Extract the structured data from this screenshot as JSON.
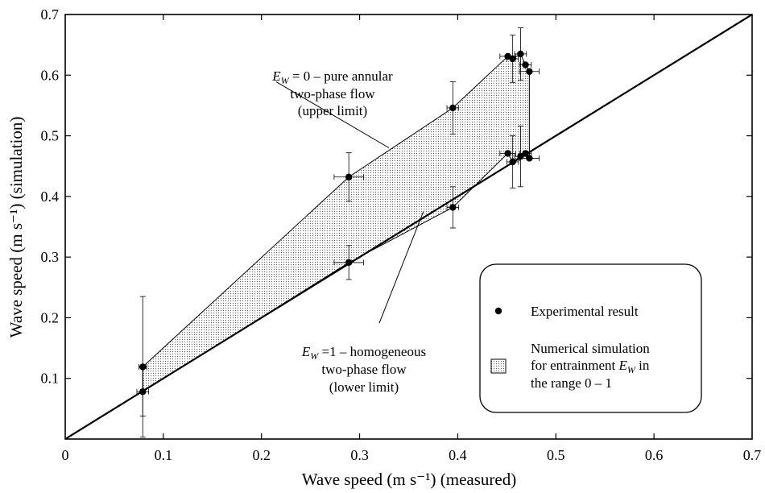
{
  "chart_data": {
    "type": "scatter",
    "xlabel": "Wave speed (m s⁻¹) (measured)",
    "ylabel": "Wave speed (m s⁻¹) (simulation)",
    "xlim": [
      0,
      0.7
    ],
    "ylim": [
      0,
      0.7
    ],
    "x_ticks": [
      "0",
      "0.1",
      "0.2",
      "0.3",
      "0.4",
      "0.5",
      "0.6",
      "0.7"
    ],
    "y_ticks": [
      "0.1",
      "0.2",
      "0.3",
      "0.4",
      "0.5",
      "0.6",
      "0.7"
    ],
    "x_tick_values": [
      0,
      0.1,
      0.2,
      0.3,
      0.4,
      0.5,
      0.6,
      0.7
    ],
    "y_tick_values": [
      0.1,
      0.2,
      0.3,
      0.4,
      0.5,
      0.6,
      0.7
    ],
    "grid": false,
    "reference_line": {
      "x": [
        0,
        0.7
      ],
      "y": [
        0,
        0.7
      ]
    },
    "upper_limit": {
      "x": [
        0.079,
        0.289,
        0.395,
        0.451,
        0.456,
        0.464,
        0.469,
        0.473
      ],
      "y": [
        0.119,
        0.432,
        0.546,
        0.631,
        0.627,
        0.635,
        0.617,
        0.606
      ]
    },
    "lower_limit": {
      "x": [
        0.079,
        0.289,
        0.395,
        0.451,
        0.456,
        0.464,
        0.469,
        0.473
      ],
      "y": [
        0.078,
        0.291,
        0.382,
        0.471,
        0.457,
        0.466,
        0.471,
        0.463
      ]
    },
    "series": [
      {
        "name": "Experimental result",
        "points": [
          {
            "x": 0.079,
            "y": 0.119,
            "xerr": 0.004,
            "yerr": 0.116
          },
          {
            "x": 0.079,
            "y": 0.078,
            "xerr": 0.006,
            "yerr": 0.04
          },
          {
            "x": 0.289,
            "y": 0.432,
            "xerr": 0.015,
            "yerr": 0.04
          },
          {
            "x": 0.289,
            "y": 0.291,
            "xerr": 0.015,
            "yerr": 0.028
          },
          {
            "x": 0.395,
            "y": 0.546,
            "xerr": 0.006,
            "yerr": 0.043
          },
          {
            "x": 0.395,
            "y": 0.382,
            "xerr": 0.006,
            "yerr": 0.034
          },
          {
            "x": 0.451,
            "y": 0.631,
            "xerr": 0.008,
            "yerr": 0.0
          },
          {
            "x": 0.456,
            "y": 0.627,
            "xerr": 0.006,
            "yerr": 0.039
          },
          {
            "x": 0.464,
            "y": 0.635,
            "xerr": 0.006,
            "yerr": 0.043
          },
          {
            "x": 0.469,
            "y": 0.617,
            "xerr": 0.006,
            "yerr": 0.0
          },
          {
            "x": 0.473,
            "y": 0.606,
            "xerr": 0.01,
            "yerr": 0.0
          },
          {
            "x": 0.451,
            "y": 0.471,
            "xerr": 0.008,
            "yerr": 0.0
          },
          {
            "x": 0.456,
            "y": 0.457,
            "xerr": 0.006,
            "yerr": 0.043
          },
          {
            "x": 0.464,
            "y": 0.466,
            "xerr": 0.006,
            "yerr": 0.05
          },
          {
            "x": 0.469,
            "y": 0.471,
            "xerr": 0.006,
            "yerr": 0.0
          },
          {
            "x": 0.473,
            "y": 0.463,
            "xerr": 0.01,
            "yerr": 0.0
          }
        ]
      }
    ],
    "annotations": {
      "upper": {
        "line1_sub": "W",
        "line1_rest": " = 0 – pure annular",
        "line2": "two-phase flow",
        "line3": "(upper limit)",
        "pointer_from": {
          "x": 0.215,
          "y": 0.589
        },
        "pointer_to": {
          "x": 0.33,
          "y": 0.48
        }
      },
      "lower": {
        "line1_sub": "W",
        "line1_rest": " =1 – homogeneous",
        "line2": "two-phase flow",
        "line3": "(lower limit)",
        "pointer_from": {
          "x": 0.32,
          "y": 0.191
        },
        "pointer_to": {
          "x": 0.365,
          "y": 0.375
        }
      }
    },
    "legend": {
      "position": "bottom-right",
      "item1": "Experimental result",
      "item2_line1": "Numerical simulation",
      "item2_line2_prefix": "for entrainment ",
      "item2_line2_sub": "W",
      "item2_line3": "the range 0 – 1"
    }
  }
}
